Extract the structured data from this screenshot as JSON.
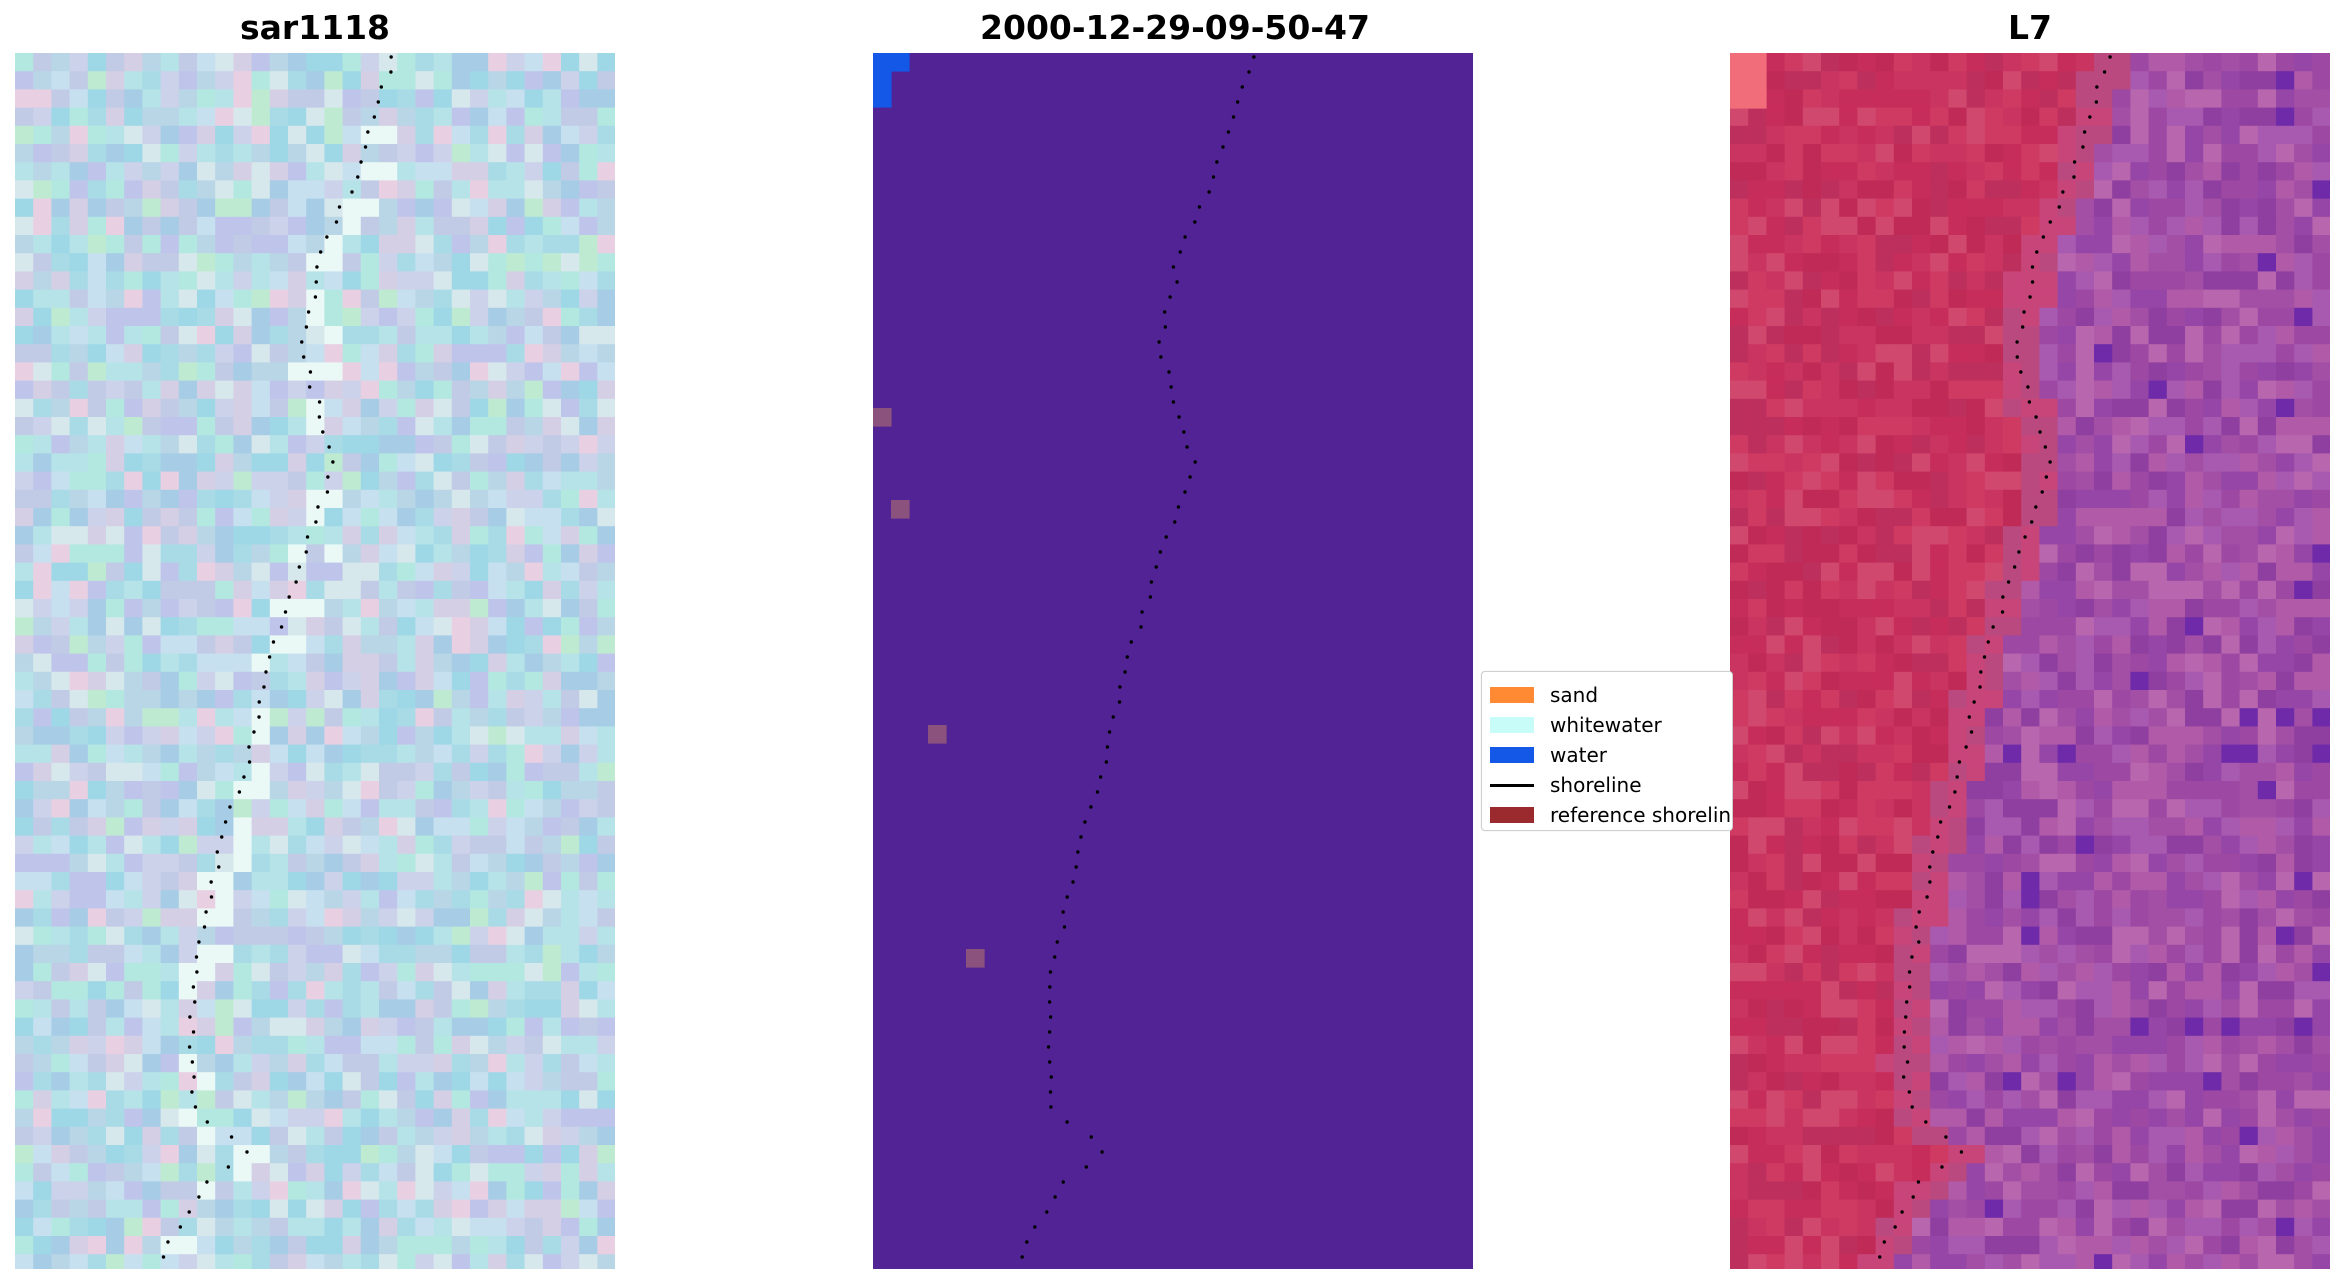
{
  "panels": [
    {
      "title": "sar1118"
    },
    {
      "title": "2000-12-29-09-50-47"
    },
    {
      "title": "L7"
    }
  ],
  "legend": {
    "items": [
      {
        "label": "sand",
        "kind": "patch",
        "color": "#ff8a33"
      },
      {
        "label": "whitewater",
        "kind": "patch",
        "color": "#c8fcf8"
      },
      {
        "label": "water",
        "kind": "patch",
        "color": "#1358e6"
      },
      {
        "label": "shoreline",
        "kind": "line",
        "color": "#000000"
      },
      {
        "label": "reference shoreline",
        "kind": "patch",
        "color": "#9b2a2f"
      }
    ]
  },
  "colors": {
    "classified_background": "#512394",
    "classified_speckle": "#8c527e",
    "l7_sand": "#c72d5a",
    "l7_water": "#a24fa5"
  }
}
